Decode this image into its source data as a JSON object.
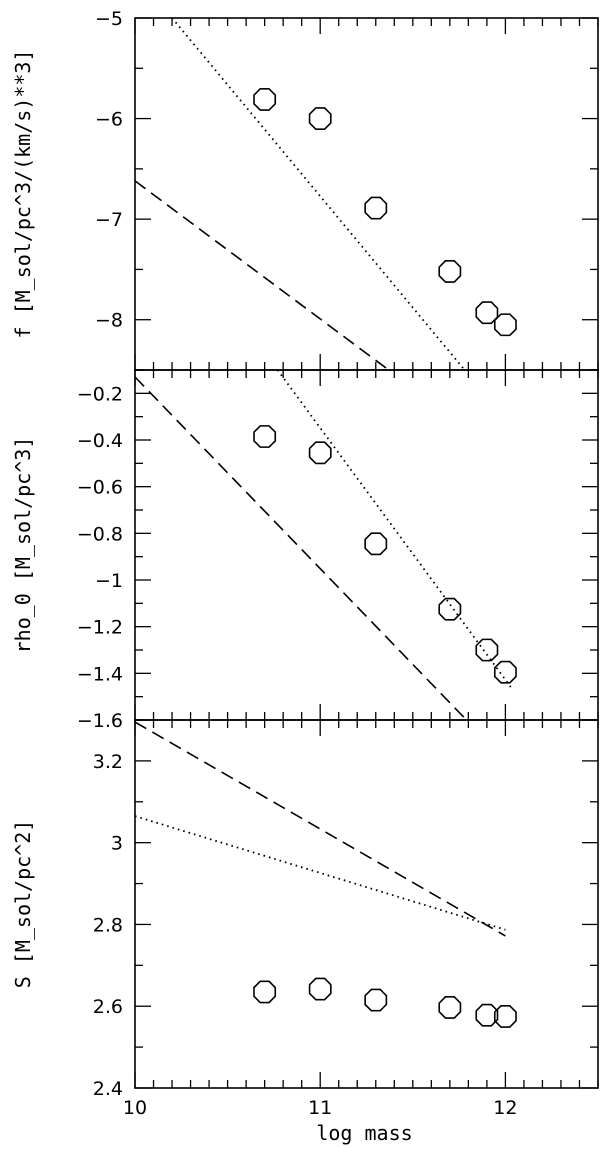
{
  "chart_data": [
    {
      "type": "scatter",
      "ylabel": "f  [M_sol/pc^3/(km/s)**3]",
      "xlim": [
        10,
        12.5
      ],
      "ylim": [
        -8.5,
        -5
      ],
      "yticks": [
        -5,
        -6,
        -7,
        -8
      ],
      "ytick_labels": [
        "−5",
        "−6",
        "−7",
        "−8"
      ],
      "points": {
        "x": [
          10.7,
          11.0,
          11.3,
          11.7,
          11.9,
          12.0
        ],
        "y": [
          -5.81,
          -6.0,
          -6.89,
          -7.52,
          -7.93,
          -8.05
        ]
      },
      "lines": [
        {
          "style": "dotted",
          "x": [
            10.2,
            11.78
          ],
          "y": [
            -5.0,
            -8.5
          ]
        },
        {
          "style": "dashed",
          "x": [
            10.0,
            11.37
          ],
          "y": [
            -6.62,
            -8.5
          ]
        }
      ]
    },
    {
      "type": "scatter",
      "ylabel": "rho_0  [M_sol/pc^3]",
      "xlim": [
        10,
        12.5
      ],
      "ylim": [
        -1.6,
        -0.1
      ],
      "yticks": [
        -0.2,
        -0.4,
        -0.6,
        -0.8,
        -1.0,
        -1.2,
        -1.4,
        -1.6
      ],
      "ytick_labels": [
        "−0.2",
        "−0.4",
        "−0.6",
        "−0.8",
        "−1",
        "−1.2",
        "−1.4",
        "−1.6"
      ],
      "points": {
        "x": [
          10.7,
          11.0,
          11.3,
          11.7,
          11.9,
          12.0
        ],
        "y": [
          -0.385,
          -0.455,
          -0.845,
          -1.125,
          -1.3,
          -1.395
        ]
      },
      "lines": [
        {
          "style": "dotted",
          "x": [
            10.77,
            12.03
          ],
          "y": [
            -0.1,
            -1.46
          ]
        },
        {
          "style": "dashed",
          "x": [
            10.0,
            11.79
          ],
          "y": [
            -0.13,
            -1.6
          ]
        }
      ]
    },
    {
      "type": "scatter",
      "xlabel": "log  mass",
      "ylabel": "S  [M_sol/pc^2]",
      "xlim": [
        10,
        12.5
      ],
      "ylim": [
        2.4,
        3.3
      ],
      "xticks": [
        10,
        11,
        12
      ],
      "xtick_labels": [
        "10",
        "11",
        "12"
      ],
      "yticks": [
        2.4,
        2.6,
        2.8,
        3.0,
        3.2
      ],
      "ytick_labels": [
        "2.4",
        "2.6",
        "2.8",
        "3",
        "3.2"
      ],
      "points": {
        "x": [
          10.7,
          11.0,
          11.3,
          11.7,
          11.9,
          12.0
        ],
        "y": [
          2.635,
          2.642,
          2.615,
          2.597,
          2.578,
          2.575
        ]
      },
      "lines": [
        {
          "style": "dotted",
          "x": [
            10.0,
            12.0
          ],
          "y": [
            3.065,
            2.787
          ]
        },
        {
          "style": "dashed",
          "x": [
            10.0,
            12.0
          ],
          "y": [
            3.295,
            2.772
          ]
        }
      ]
    }
  ]
}
